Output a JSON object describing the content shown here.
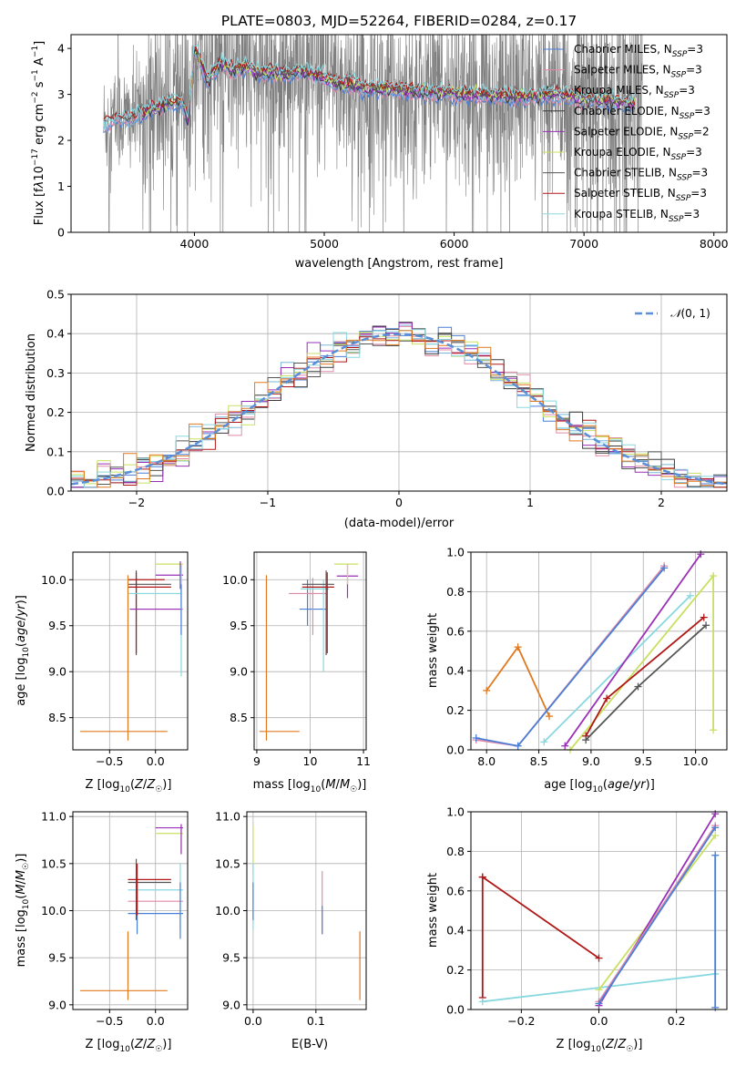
{
  "colors": {
    "Chabrier MILES": "#4a7fd8",
    "Salpeter MILES": "#e08aa8",
    "Kroupa MILES": "#79b8d8",
    "Chabrier ELODIE": "#3a3a3a",
    "Salpeter ELODIE": "#9a30b8",
    "Kroupa ELODIE": "#c8e060",
    "Chabrier STELIB": "#555555",
    "Salpeter STELIB": "#b01818",
    "Kroupa STELIB": "#88d8e0",
    "data": "#7f7f7f",
    "gauss": "#5a8fd8",
    "orange": "#e07a20"
  },
  "chart_data": [
    {
      "id": "spectrum",
      "type": "line",
      "title": "PLATE=0803, MJD=52264, FIBERID=0284, z=0.17",
      "xlabel": "wavelength [Angstrom, rest frame]",
      "ylabel": "Flux [f$_\\lambda$10$^{-17}$ erg cm$^{-2}$ s$^{-1}$ A$^{-1}$]",
      "xlim": [
        3050,
        8100
      ],
      "ylim": [
        0,
        4.3
      ],
      "xticks": [
        4000,
        5000,
        6000,
        7000,
        8000
      ],
      "yticks": [
        0,
        1,
        2,
        3,
        4
      ],
      "grid": false,
      "legend": "top-right",
      "legend_entries": [
        {
          "label": "Chabrier MILES, N",
          "sub": "SSP",
          "rest": "=3",
          "color_key": "Chabrier MILES"
        },
        {
          "label": "Salpeter MILES, N",
          "sub": "SSP",
          "rest": "=3",
          "color_key": "Salpeter MILES"
        },
        {
          "label": "Kroupa MILES, N",
          "sub": "SSP",
          "rest": "=3",
          "color_key": "Kroupa MILES"
        },
        {
          "label": "Chabrier ELODIE, N",
          "sub": "SSP",
          "rest": "=3",
          "color_key": "Chabrier ELODIE"
        },
        {
          "label": "Salpeter ELODIE, N",
          "sub": "SSP",
          "rest": "=2",
          "color_key": "Salpeter ELODIE"
        },
        {
          "label": "Kroupa ELODIE, N",
          "sub": "SSP",
          "rest": "=3",
          "color_key": "Kroupa ELODIE"
        },
        {
          "label": "Chabrier STELIB, N",
          "sub": "SSP",
          "rest": "=3",
          "color_key": "Chabrier STELIB"
        },
        {
          "label": "Salpeter STELIB, N",
          "sub": "SSP",
          "rest": "=3",
          "color_key": "Salpeter STELIB"
        },
        {
          "label": "Kroupa STELIB, N",
          "sub": "SSP",
          "rest": "=3",
          "color_key": "Kroupa STELIB"
        }
      ],
      "model_continuum": {
        "x": [
          3300,
          3400,
          3500,
          3600,
          3700,
          3800,
          3900,
          3950,
          4000,
          4050,
          4100,
          4200,
          4300,
          4400,
          4500,
          4600,
          4700,
          4800,
          4900,
          5000,
          5100,
          5200,
          5300,
          5500,
          5800,
          6100,
          6500,
          6800,
          7000,
          7200,
          7400
        ],
        "y": [
          2.35,
          2.5,
          2.45,
          2.6,
          2.7,
          2.8,
          2.85,
          2.4,
          4.0,
          3.7,
          3.3,
          3.7,
          3.5,
          3.6,
          3.45,
          3.5,
          3.4,
          3.5,
          3.45,
          3.35,
          3.2,
          3.25,
          3.15,
          3.1,
          3.05,
          3.0,
          2.95,
          3.0,
          2.9,
          2.85,
          2.8
        ]
      },
      "data_visible_range": [
        3300,
        7450
      ]
    },
    {
      "id": "residuals",
      "type": "bar",
      "xlabel": "(data-model)/error",
      "ylabel": "Normed distribution",
      "xlim": [
        -2.5,
        2.5
      ],
      "ylim": [
        0,
        0.5
      ],
      "xticks": [
        -2,
        -1,
        0,
        1,
        2
      ],
      "yticks": [
        0.0,
        0.1,
        0.2,
        0.3,
        0.4,
        0.5
      ],
      "grid": true,
      "legend": "top-right",
      "legend_label": "N(0, 1)",
      "bin_width": 0.1
    },
    {
      "id": "age_vs_Z",
      "type": "scatter",
      "xlabel": "Z [log10(Z/Z☉)]",
      "ylabel": "age [log10(age/yr)]",
      "xlim": [
        -0.9,
        0.35
      ],
      "ylim": [
        8.15,
        10.3
      ],
      "xticks": [
        -0.5,
        0.0
      ],
      "yticks": [
        8.5,
        9.0,
        9.5,
        10.0
      ],
      "grid": true
    },
    {
      "id": "age_vs_mass",
      "type": "scatter",
      "xlabel": "mass [log10(M/M☉)]",
      "xlim": [
        8.95,
        11.05
      ],
      "ylim": [
        8.15,
        10.3
      ],
      "xticks": [
        9,
        10,
        11
      ],
      "yticks": [
        8.5,
        9.0,
        9.5,
        10.0
      ],
      "grid": true
    },
    {
      "id": "massweight_vs_age",
      "type": "line",
      "xlabel": "age [log10(age/yr)]",
      "ylabel": "mass weight",
      "xlim": [
        7.85,
        10.3
      ],
      "ylim": [
        0,
        1.0
      ],
      "xticks": [
        8.0,
        8.5,
        9.0,
        9.5,
        10.0
      ],
      "yticks": [
        0.0,
        0.2,
        0.4,
        0.6,
        0.8,
        1.0
      ],
      "grid": true,
      "series": [
        {
          "color_key": "orange",
          "x": [
            8.0,
            8.3,
            8.6
          ],
          "y": [
            0.3,
            0.52,
            0.17
          ]
        },
        {
          "color_key": "Salpeter MILES",
          "x": [
            7.9,
            8.3,
            9.7
          ],
          "y": [
            0.05,
            0.02,
            0.93
          ]
        },
        {
          "color_key": "Chabrier MILES",
          "x": [
            7.9,
            8.3,
            9.7
          ],
          "y": [
            0.06,
            0.02,
            0.92
          ]
        },
        {
          "color_key": "Kroupa STELIB",
          "x": [
            8.55,
            9.95
          ],
          "y": [
            0.04,
            0.78
          ]
        },
        {
          "color_key": "Salpeter ELODIE",
          "x": [
            8.75,
            10.05
          ],
          "y": [
            0.02,
            0.99
          ]
        },
        {
          "color_key": "Kroupa ELODIE",
          "x": [
            8.8,
            10.17,
            10.17
          ],
          "y": [
            0.0,
            0.88,
            0.1
          ]
        },
        {
          "color_key": "Salpeter STELIB",
          "x": [
            8.95,
            9.15,
            10.08
          ],
          "y": [
            0.07,
            0.26,
            0.67
          ]
        },
        {
          "color_key": "Chabrier STELIB",
          "x": [
            8.95,
            9.45,
            10.1
          ],
          "y": [
            0.05,
            0.32,
            0.63
          ]
        }
      ]
    },
    {
      "id": "mass_vs_Z",
      "type": "scatter",
      "xlabel": "Z [log10(Z/Z☉)]",
      "ylabel": "mass [log10(M/M☉)]",
      "xlim": [
        -0.9,
        0.35
      ],
      "ylim": [
        8.95,
        11.05
      ],
      "xticks": [
        -0.5,
        0.0
      ],
      "yticks": [
        9.0,
        9.5,
        10.0,
        10.5,
        11.0
      ],
      "grid": true
    },
    {
      "id": "mass_vs_ebv",
      "type": "scatter",
      "xlabel": "E(B-V)",
      "xlim": [
        -0.01,
        0.18
      ],
      "ylim": [
        8.95,
        11.05
      ],
      "xticks": [
        0.0,
        0.1
      ],
      "yticks": [
        9.0,
        9.5,
        10.0,
        10.5,
        11.0
      ],
      "grid": true
    },
    {
      "id": "massweight_vs_Z",
      "type": "line",
      "xlabel": "Z [log10(Z/Z☉)]",
      "ylabel": "mass weight",
      "xlim": [
        -0.33,
        0.33
      ],
      "ylim": [
        0,
        1.0
      ],
      "xticks": [
        -0.2,
        0.0,
        0.2
      ],
      "yticks": [
        0.0,
        0.2,
        0.4,
        0.6,
        0.8,
        1.0
      ],
      "grid": true,
      "series": [
        {
          "color_key": "Salpeter STELIB",
          "x": [
            -0.3,
            -0.3,
            -0.3,
            0.0
          ],
          "y": [
            0.06,
            0.67,
            0.67,
            0.26
          ]
        },
        {
          "color_key": "Kroupa STELIB",
          "x": [
            -0.3,
            0.3
          ],
          "y": [
            0.04,
            0.18
          ]
        },
        {
          "color_key": "Kroupa ELODIE",
          "x": [
            0.0,
            0.3
          ],
          "y": [
            0.1,
            0.88
          ]
        },
        {
          "color_key": "Salpeter ELODIE",
          "x": [
            0.0,
            0.3
          ],
          "y": [
            0.02,
            0.99
          ]
        },
        {
          "color_key": "Salpeter MILES",
          "x": [
            0.0,
            0.3
          ],
          "y": [
            0.04,
            0.93
          ]
        },
        {
          "color_key": "Chabrier MILES",
          "x": [
            0.0,
            0.3
          ],
          "y": [
            0.03,
            0.92
          ]
        },
        {
          "color_key": "Kroupa STELIB",
          "x": [
            0.3,
            0.3
          ],
          "y": [
            0.18,
            0.78
          ]
        },
        {
          "color_key": "Chabrier MILES",
          "x": [
            0.3,
            0.3
          ],
          "y": [
            0.01,
            0.78
          ]
        }
      ]
    }
  ],
  "text": {
    "title": "PLATE=0803, MJD=52264, FIBERID=0284, z=0.17",
    "spec_xlabel": "wavelength [Angstrom, rest frame]",
    "resid_xlabel": "(data-model)/error",
    "resid_ylabel": "Normed distribution",
    "age_ylabel": "age",
    "mw_ylabel": "mass weight",
    "mass_ylabel": "mass",
    "ebv_xlabel": "E(B-V)"
  }
}
